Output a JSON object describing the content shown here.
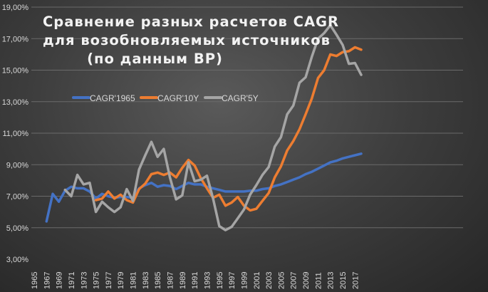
{
  "chart_data": {
    "type": "line",
    "title": [
      "Сравнение  разных расчетов  CAGR",
      "для возобновляемых  источников",
      "(по данным  BP)"
    ],
    "xlabel": "",
    "ylabel": "",
    "ylim": [
      3,
      19
    ],
    "yticks": [
      "3,00%",
      "5,00%",
      "7,00%",
      "9,00%",
      "11,00%",
      "13,00%",
      "15,00%",
      "17,00%",
      "19,00%"
    ],
    "xticks": [
      "1965",
      "1967",
      "1969",
      "1971",
      "1973",
      "1975",
      "1977",
      "1979",
      "1981",
      "1983",
      "1985",
      "1987",
      "1989",
      "1991",
      "1993",
      "1995",
      "1997",
      "1999",
      "2001",
      "2003",
      "2005",
      "2007",
      "2009",
      "2011",
      "2013",
      "2015",
      "2017"
    ],
    "xlim": [
      1965,
      2018
    ],
    "grid": true,
    "legend_placement": "upper-left inside",
    "series": [
      {
        "name": "CAGR'1965",
        "color": "#4472c4",
        "start": 1967,
        "values": [
          5.4,
          7.15,
          6.65,
          7.35,
          7.6,
          7.5,
          7.5,
          7.3,
          6.85,
          7.15,
          7.0,
          6.9,
          6.95,
          6.95,
          6.9,
          7.5,
          7.7,
          7.85,
          7.6,
          7.7,
          7.65,
          7.45,
          7.65,
          7.85,
          7.75,
          7.75,
          7.6,
          7.5,
          7.4,
          7.3,
          7.3,
          7.3,
          7.3,
          7.35,
          7.35,
          7.45,
          7.5,
          7.65,
          7.75,
          7.9,
          8.05,
          8.2,
          8.4,
          8.55,
          8.75,
          8.95,
          9.15,
          9.25,
          9.4,
          9.5,
          9.6,
          9.7
        ]
      },
      {
        "name": "CAGR'10Y",
        "color": "#ed7d31",
        "start": 1975,
        "values": [
          6.75,
          6.85,
          7.3,
          6.85,
          7.1,
          6.75,
          6.6,
          7.45,
          7.8,
          8.4,
          8.5,
          8.35,
          8.5,
          8.2,
          8.8,
          9.3,
          8.95,
          8.15,
          7.5,
          6.9,
          7.1,
          6.4,
          6.6,
          6.95,
          6.4,
          6.1,
          6.2,
          6.7,
          7.2,
          8.2,
          8.9,
          9.9,
          10.5,
          11.25,
          12.2,
          13.2,
          14.5,
          15.0,
          16.0,
          15.9,
          16.15,
          16.2,
          16.45,
          16.3
        ]
      },
      {
        "name": "CAGR'5Y",
        "color": "#a5a5a5",
        "start": 1970,
        "values": [
          7.4,
          7.0,
          8.35,
          7.75,
          7.85,
          6.0,
          6.65,
          6.3,
          6.0,
          6.3,
          7.45,
          6.7,
          8.7,
          9.6,
          10.45,
          9.5,
          10.0,
          8.2,
          6.8,
          7.05,
          9.15,
          7.95,
          8.05,
          8.3,
          6.85,
          5.1,
          4.85,
          5.05,
          5.6,
          6.15,
          7.1,
          7.7,
          8.35,
          8.85,
          10.15,
          10.75,
          12.2,
          12.75,
          14.2,
          14.55,
          15.85,
          17.0,
          17.35,
          17.85,
          17.25,
          16.6,
          15.4,
          15.45,
          14.7
        ]
      }
    ]
  }
}
